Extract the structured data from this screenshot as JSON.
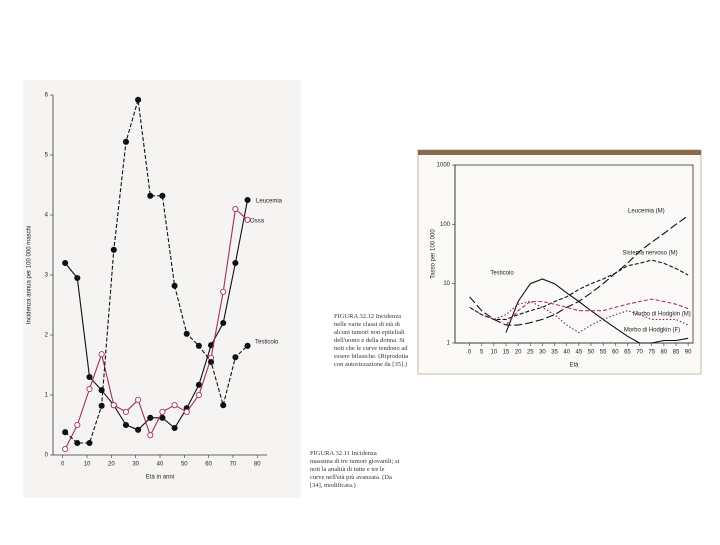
{
  "chart_data": [
    {
      "type": "line",
      "x_label": "Età in anni",
      "y_label": "Incidenza annua per 100 000 maschi",
      "caption": "FIGURA 32.11 Incidenza massima di tre tumori giovanili; si noti la analità di tutte e tre le curve nell'età più avanzata. (Da [34], modificata.)",
      "x": [
        1,
        6,
        11,
        16,
        21,
        26,
        31,
        36,
        41,
        46,
        51,
        56,
        61,
        66,
        71,
        76
      ],
      "xlim": [
        -4,
        84
      ],
      "xticks": [
        0,
        10,
        20,
        30,
        40,
        50,
        60,
        70,
        80
      ],
      "ylim": [
        0,
        6
      ],
      "yticks": [
        0,
        1,
        2,
        3,
        4,
        5,
        6
      ],
      "log_y": false,
      "series": [
        {
          "name": "Leucemia",
          "color": "#111111",
          "dash": "solid",
          "marker": "filled",
          "values": [
            3.2,
            2.95,
            1.3,
            1.08,
            0.83,
            0.5,
            0.42,
            0.62,
            0.62,
            0.45,
            0.78,
            1.17,
            1.83,
            2.2,
            3.2,
            4.25
          ]
        },
        {
          "name": "Ossa",
          "color": "#a0305a",
          "dash": "solid",
          "marker": "open",
          "values": [
            0.1,
            0.5,
            1.1,
            1.68,
            0.83,
            0.72,
            0.92,
            0.33,
            0.72,
            0.83,
            0.72,
            1.0,
            1.62,
            2.72,
            4.1,
            3.92
          ]
        },
        {
          "name": "Testicolo",
          "color": "#111111",
          "dash": "dashed",
          "marker": "filled",
          "values": [
            0.38,
            0.2,
            0.2,
            0.82,
            3.42,
            5.22,
            5.92,
            4.32,
            4.32,
            2.82,
            2.02,
            1.82,
            1.55,
            0.83,
            1.63,
            1.82
          ]
        }
      ]
    },
    {
      "type": "line",
      "x_label": "Età",
      "y_label": "Tasso per 100 000",
      "caption": "FIGURA 32.12 Incidenza nelle varie classi di età di alcuni tumori non epiteliali dell'uomo e della donna. Si noti che le curve tendono ad essere bifasiche. (Riprodotta con autorizzazione da [35].)",
      "x": [
        0,
        5,
        10,
        15,
        20,
        25,
        30,
        35,
        40,
        45,
        50,
        55,
        60,
        65,
        70,
        75,
        80,
        85,
        90
      ],
      "xlim": [
        -6,
        92
      ],
      "xticks": [
        0,
        5,
        10,
        15,
        20,
        25,
        30,
        35,
        40,
        45,
        50,
        55,
        60,
        65,
        70,
        75,
        80,
        85,
        90
      ],
      "ylim": [
        1,
        1000
      ],
      "yticks": [
        1,
        10,
        100,
        1000
      ],
      "log_y": true,
      "series": [
        {
          "name": "Leucemia (M)",
          "color": "#111111",
          "dash": "longdash",
          "marker": "none",
          "values": [
            6,
            3.5,
            2.5,
            2,
            2,
            2.2,
            2.5,
            3,
            4,
            5,
            7,
            10,
            15,
            22,
            35,
            50,
            70,
            100,
            140
          ]
        },
        {
          "name": "Sistema nervoso (M)",
          "color": "#111111",
          "dash": "dashed",
          "marker": "none",
          "values": [
            4,
            3,
            2.5,
            2.5,
            3,
            3.5,
            4,
            5,
            6,
            8,
            10,
            12,
            15,
            20,
            22,
            25,
            22,
            18,
            14
          ]
        },
        {
          "name": "Testicolo",
          "color": "#111111",
          "dash": "solid",
          "marker": "none",
          "values": [
            null,
            null,
            null,
            1.5,
            5,
            10,
            12,
            10,
            7,
            5,
            3.5,
            2.5,
            1.8,
            1.3,
            1,
            1,
            1.1,
            1.1,
            1.2
          ]
        },
        {
          "name": "Morbo di Hodgkin (M)",
          "color": "#b03070",
          "dash": "dashed",
          "marker": "none",
          "values": [
            null,
            null,
            null,
            2,
            3.5,
            5,
            5,
            4.5,
            4,
            3.5,
            3.5,
            3.5,
            4,
            4.5,
            5,
            5.5,
            5,
            4.5,
            3.8
          ]
        },
        {
          "name": "Morbo di Hodgkin (F)",
          "color": "#7a2a50",
          "dash": "dotted",
          "marker": "none",
          "values": [
            4,
            3,
            2.5,
            3,
            4.5,
            5,
            4,
            3,
            2,
            1.5,
            2,
            2.5,
            3,
            3.5,
            3,
            2.5,
            2.5,
            2.5,
            2
          ]
        }
      ]
    }
  ]
}
